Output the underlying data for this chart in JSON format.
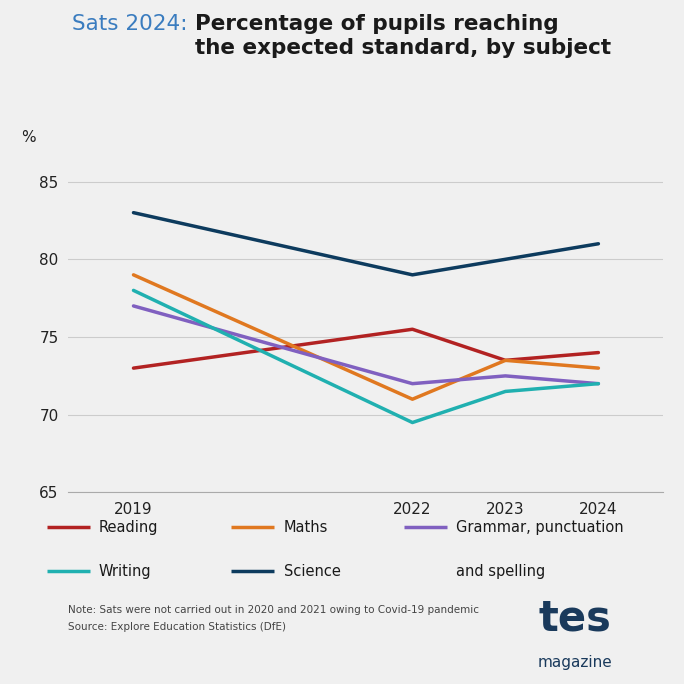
{
  "title_prefix": "Sats 2024: ",
  "title_main": "Percentage of pupils reaching\nthe expected standard, by subject",
  "ylabel": "%",
  "years": [
    2019,
    2022,
    2023,
    2024
  ],
  "series": {
    "Reading": {
      "values": [
        73.0,
        75.5,
        73.5,
        74.0
      ],
      "color": "#b22222"
    },
    "Maths": {
      "values": [
        79.0,
        71.0,
        73.5,
        73.0
      ],
      "color": "#e07820"
    },
    "Grammar": {
      "values": [
        77.0,
        72.0,
        72.5,
        72.0
      ],
      "color": "#8060c0"
    },
    "Writing": {
      "values": [
        78.0,
        69.5,
        71.5,
        72.0
      ],
      "color": "#20b0b0"
    },
    "Science": {
      "values": [
        83.0,
        79.0,
        80.0,
        81.0
      ],
      "color": "#0d3b5e"
    }
  },
  "ylim": [
    65,
    87
  ],
  "yticks": [
    65,
    70,
    75,
    80,
    85
  ],
  "background_color": "#f0f0f0",
  "note_line1": "Note: Sats were not carried out in 2020 and 2021 owing to Covid-19 pandemic",
  "note_line2": "Source: Explore Education Statistics (DfE)",
  "tes_text1": "tes",
  "tes_text2": "magazine",
  "tes_color": "#1a3a5c",
  "legend_items": [
    {
      "label": "Reading",
      "color": "#b22222",
      "col": 0,
      "row": 0
    },
    {
      "label": "Maths",
      "color": "#e07820",
      "col": 1,
      "row": 0
    },
    {
      "label": "Writing",
      "color": "#20b0b0",
      "col": 0,
      "row": 1
    },
    {
      "label": "Science",
      "color": "#0d3b5e",
      "col": 1,
      "row": 1
    }
  ],
  "grammar_label_line1": "Grammar, punctuation",
  "grammar_label_line2": "and spelling",
  "grammar_color": "#8060c0"
}
